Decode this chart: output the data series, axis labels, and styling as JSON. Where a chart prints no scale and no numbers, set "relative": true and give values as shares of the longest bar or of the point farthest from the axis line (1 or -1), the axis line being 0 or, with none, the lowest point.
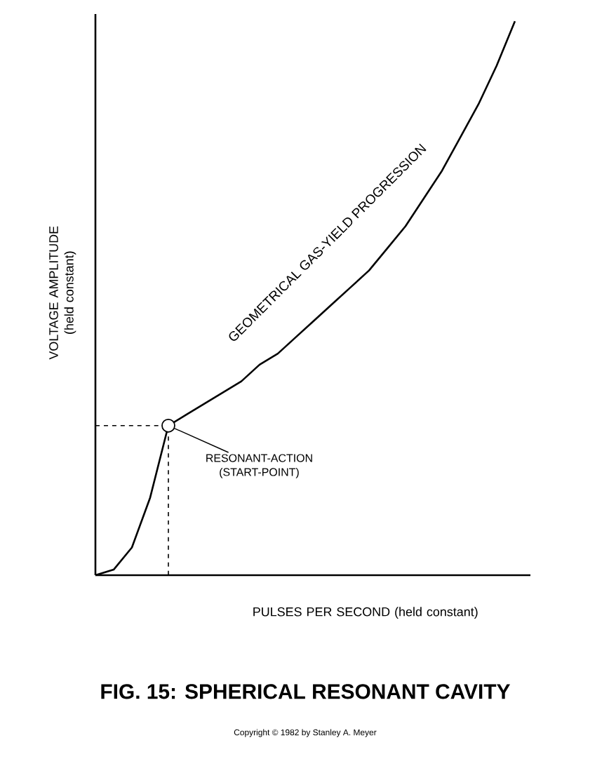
{
  "chart_data": {
    "type": "line",
    "relative": true,
    "title": "FIG. 15: SPHERICAL RESONANT CAVITY",
    "xlabel": "PULSES PER SECOND (held constant)",
    "ylabel": "VOLTAGE AMPLITUDE (held constant)",
    "categories": [
      null,
      null,
      null,
      null,
      null,
      null,
      null,
      null,
      null,
      null,
      null,
      null,
      null,
      null,
      null,
      null,
      null,
      null,
      null,
      null,
      null,
      null,
      null,
      null
    ],
    "values": [
      0,
      0.01,
      0.05,
      0.14,
      0.27,
      0.29,
      0.31,
      0.33,
      0.35,
      0.38,
      0.4,
      0.43,
      0.46,
      0.49,
      0.52,
      0.55,
      0.59,
      0.63,
      0.68,
      0.73,
      0.79,
      0.85,
      0.92,
      1
    ],
    "color": "#000000",
    "marker": "none",
    "line_style": "solid",
    "ref_lines": [
      {
        "axis": "y",
        "value": 0.27,
        "line_style": "dashed",
        "color": "#000000"
      }
    ],
    "annotations": [
      "GEOMETRICAL GAS-YIELD PROGRESSION",
      "RESONANT-ACTION (START-POINT)",
      "Copyright © 1982 by Stanley A. Meyer"
    ]
  }
}
